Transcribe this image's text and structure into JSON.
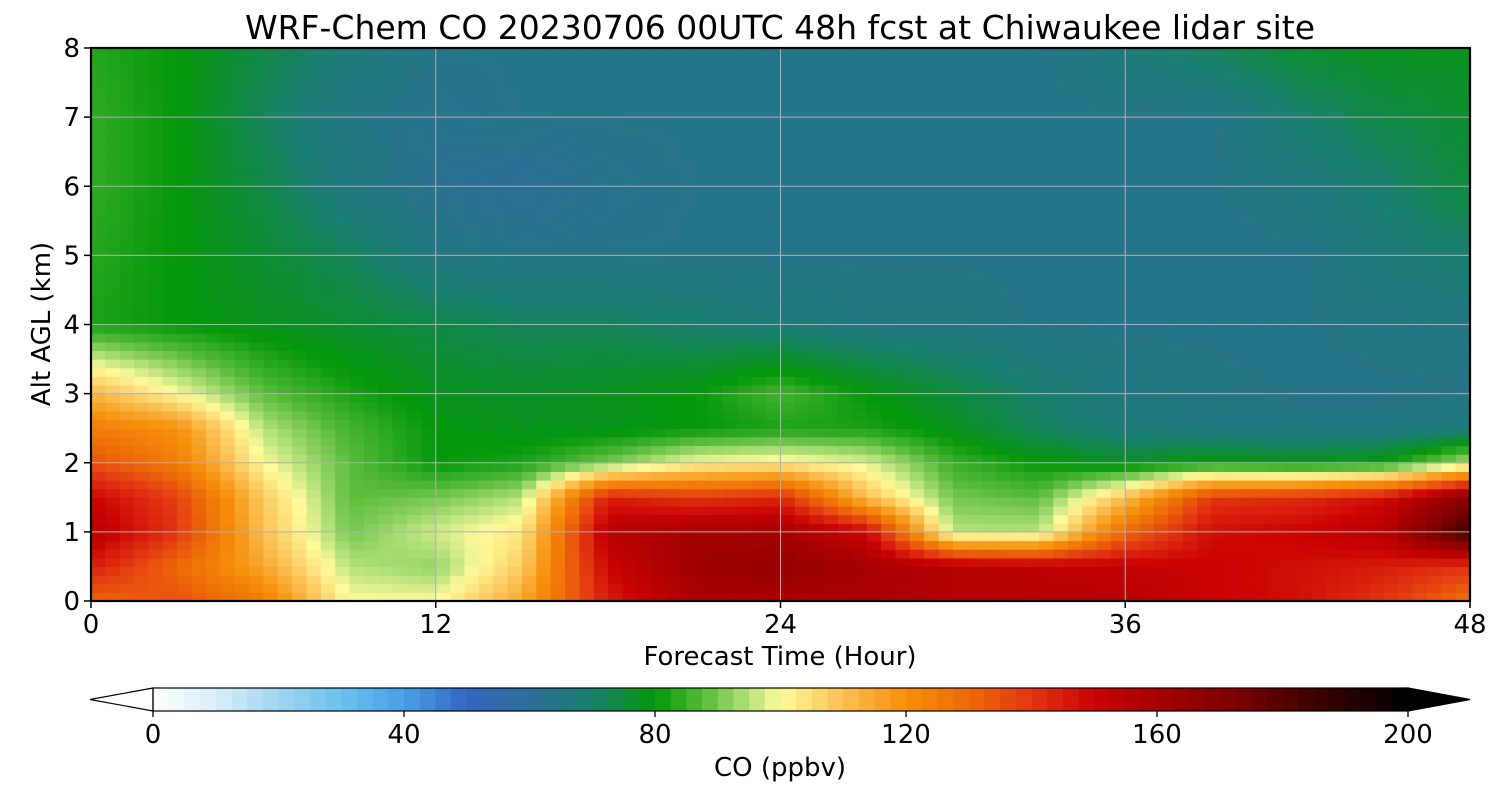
{
  "chart_data": {
    "type": "heatmap",
    "title": "WRF-Chem CO  20230706 00UTC 48h fcst at Chiwaukee lidar site",
    "xlabel": "Forecast Time (Hour)",
    "ylabel": "Alt AGL (km)",
    "xlim": [
      0,
      48
    ],
    "ylim": [
      0,
      8
    ],
    "x_ticks": [
      "0",
      "12",
      "24",
      "36",
      "48"
    ],
    "y_ticks": [
      "0",
      "1",
      "2",
      "3",
      "4",
      "5",
      "6",
      "7",
      "8"
    ],
    "grid": true,
    "x": [
      0,
      3,
      6,
      9,
      12,
      15,
      18,
      21,
      24,
      27,
      30,
      33,
      36,
      39,
      42,
      45,
      48
    ],
    "y": [
      0,
      0.5,
      1,
      1.5,
      2,
      2.5,
      3,
      4,
      5,
      6,
      7,
      8
    ],
    "z": [
      [
        130,
        135,
        125,
        100,
        100,
        115,
        145,
        158,
        158,
        158,
        156,
        155,
        155,
        150,
        148,
        140,
        128
      ],
      [
        145,
        130,
        115,
        95,
        92,
        108,
        150,
        162,
        165,
        160,
        156,
        154,
        152,
        150,
        148,
        145,
        140
      ],
      [
        155,
        140,
        110,
        90,
        97,
        103,
        155,
        160,
        160,
        150,
        95,
        95,
        130,
        148,
        150,
        155,
        185
      ],
      [
        150,
        138,
        108,
        88,
        90,
        95,
        145,
        140,
        143,
        110,
        90,
        88,
        110,
        140,
        142,
        148,
        170
      ],
      [
        135,
        125,
        100,
        88,
        80,
        82,
        90,
        100,
        102,
        98,
        85,
        80,
        77,
        80,
        78,
        80,
        95
      ],
      [
        125,
        120,
        95,
        86,
        80,
        78,
        78,
        80,
        82,
        82,
        78,
        72,
        68,
        66,
        66,
        66,
        68
      ],
      [
        112,
        100,
        88,
        82,
        78,
        77,
        78,
        80,
        86,
        80,
        75,
        70,
        66,
        65,
        64,
        64,
        64
      ],
      [
        82,
        80,
        78,
        76,
        74,
        72,
        72,
        70,
        68,
        66,
        66,
        64,
        64,
        64,
        64,
        65,
        66
      ],
      [
        83,
        80,
        76,
        72,
        66,
        64,
        64,
        64,
        64,
        64,
        64,
        64,
        64,
        64,
        64,
        68,
        70
      ],
      [
        84,
        80,
        74,
        66,
        62,
        60,
        63,
        64,
        64,
        64,
        64,
        64,
        64,
        64,
        66,
        70,
        75
      ],
      [
        84,
        80,
        72,
        65,
        63,
        64,
        64,
        64,
        64,
        64,
        64,
        64,
        64,
        64,
        70,
        74,
        76
      ],
      [
        83,
        80,
        74,
        68,
        64,
        64,
        64,
        64,
        64,
        64,
        64,
        64,
        68,
        72,
        76,
        78,
        78
      ]
    ],
    "colorbar": {
      "label": "CO  (ppbv)",
      "ticks": [
        "0",
        "40",
        "80",
        "120",
        "160",
        "200"
      ],
      "range": [
        0,
        200
      ],
      "extend": "both",
      "stops": [
        [
          0,
          "#ffffff"
        ],
        [
          10,
          "#d9eef9"
        ],
        [
          20,
          "#9fd5f1"
        ],
        [
          30,
          "#6bc1ef"
        ],
        [
          40,
          "#48a0e4"
        ],
        [
          50,
          "#3466c0"
        ],
        [
          60,
          "#2d6e99"
        ],
        [
          70,
          "#1a7f70"
        ],
        [
          80,
          "#05980a"
        ],
        [
          88,
          "#5bbd3c"
        ],
        [
          95,
          "#b6e27d"
        ],
        [
          100,
          "#fefa9a"
        ],
        [
          110,
          "#fbbf52"
        ],
        [
          120,
          "#f68f0a"
        ],
        [
          130,
          "#ed6a09"
        ],
        [
          140,
          "#e23512"
        ],
        [
          150,
          "#cb0303"
        ],
        [
          160,
          "#a50101"
        ],
        [
          172,
          "#7d0101"
        ],
        [
          185,
          "#3e0101"
        ],
        [
          200,
          "#000000"
        ]
      ]
    }
  }
}
